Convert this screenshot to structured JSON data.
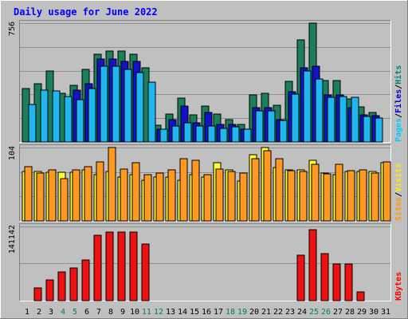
{
  "chart_data": {
    "type": "bar",
    "title": "Daily usage for June 2022",
    "days": [
      "1",
      "2",
      "3",
      "4",
      "5",
      "6",
      "7",
      "8",
      "9",
      "10",
      "11",
      "12",
      "13",
      "14",
      "15",
      "16",
      "17",
      "18",
      "19",
      "20",
      "21",
      "22",
      "23",
      "24",
      "25",
      "26",
      "27",
      "28",
      "29",
      "30",
      "31"
    ],
    "weekend_days": [
      "4",
      "5",
      "11",
      "12",
      "18",
      "19",
      "25",
      "26"
    ],
    "panels": [
      {
        "id": "hits",
        "max_label": "756",
        "max": 756,
        "legend": [
          {
            "text": "Pages",
            "color": "#00ccff"
          },
          {
            "text": "/",
            "color": "#000000"
          },
          {
            "text": "Files",
            "color": "#0000cc"
          },
          {
            "text": "/",
            "color": "#000000"
          },
          {
            "text": "Hits",
            "color": "#008080"
          }
        ],
        "series": [
          {
            "name": "Hits",
            "color": "#1c7f5c",
            "values": [
              340,
              370,
              450,
              310,
              360,
              460,
              560,
              580,
              580,
              560,
              470,
              105,
              180,
              280,
              170,
              230,
              180,
              140,
              110,
              300,
              310,
              235,
              385,
              650,
              756,
              390,
              390,
              275,
              225,
              190,
              0
            ]
          },
          {
            "name": "Files",
            "color": "#1212c8",
            "values": [
              0,
              0,
              0,
              0,
              330,
              370,
              530,
              530,
              510,
              510,
              0,
              80,
              140,
              230,
              120,
              190,
              110,
              110,
              80,
              220,
              220,
              140,
              320,
              470,
              480,
              300,
              300,
              220,
              170,
              165,
              0
            ]
          },
          {
            "name": "Pages",
            "color": "#22b6f0",
            "values": [
              240,
              330,
              325,
              290,
              270,
              340,
              480,
              480,
              460,
              440,
              380,
              80,
              100,
              120,
              100,
              100,
              85,
              95,
              80,
              200,
              200,
              135,
              305,
              450,
              400,
              285,
              290,
              285,
              160,
              150,
              0
            ]
          }
        ]
      },
      {
        "id": "visits",
        "max_label": "104",
        "max": 104,
        "legend": [
          {
            "text": "Sites",
            "color": "#ff9900"
          },
          {
            "text": "/",
            "color": "#000000"
          },
          {
            "text": "Visits",
            "color": "#ffee00"
          }
        ],
        "series": [
          {
            "name": "Visits",
            "color": "#ffff33",
            "values": [
              70,
              70,
              69,
              69,
              69,
              72,
              66,
              70,
              62,
              65,
              58,
              62,
              62,
              58,
              66,
              62,
              82,
              72,
              57,
              94,
              104,
              76,
              72,
              72,
              86,
              68,
              66,
              70,
              70,
              70,
              82
            ]
          },
          {
            "name": "Sites",
            "color": "#ff9922",
            "values": [
              77,
              68,
              72,
              60,
              72,
              77,
              84,
              104,
              73,
              82,
              66,
              68,
              72,
              88,
              86,
              66,
              73,
              70,
              68,
              88,
              100,
              88,
              71,
              70,
              80,
              67,
              80,
              71,
              72,
              68,
              84
            ]
          }
        ]
      },
      {
        "id": "kbytes",
        "max_label": "141142",
        "max": 141142,
        "legend": [
          {
            "text": "KBytes",
            "color": "#ff0000"
          }
        ],
        "series": [
          {
            "name": "KBytes",
            "color": "#ee1111",
            "values": [
              0,
              25000,
              40000,
              55000,
              62000,
              78000,
              125000,
              130000,
              131000,
              131000,
              108000,
              0,
              0,
              0,
              0,
              0,
              0,
              0,
              0,
              0,
              0,
              0,
              0,
              86000,
              135000,
              90000,
              70000,
              70000,
              16000,
              0,
              0
            ]
          }
        ]
      }
    ],
    "colors": {
      "background": "#c0c0c0",
      "plot": "#c0c0c0",
      "title": "#0000ff",
      "weekend": "#00805c",
      "weekday": "#000000"
    }
  }
}
